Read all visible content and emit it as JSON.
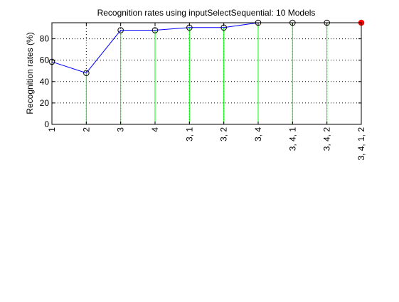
{
  "chart_data": {
    "type": "line",
    "title": "Recognition rates using inputSelectSequential: 10 Models",
    "xlabel": "",
    "ylabel": "Recognition rates (%)",
    "categories": [
      "1",
      "2",
      "3",
      "4",
      "3, 1",
      "3, 2",
      "3, 4",
      "3, 4, 1",
      "3, 4, 2",
      "3, 4, 1, 2"
    ],
    "values": [
      58.5,
      48,
      88,
      88,
      90.5,
      90.5,
      95,
      95,
      95,
      95
    ],
    "highlight_index": 9,
    "ylim": [
      0,
      95
    ],
    "yticks": [
      0,
      20,
      40,
      60,
      80
    ],
    "grid": true,
    "colors": {
      "line": "#0000ff",
      "stem": "#00ff00",
      "marker": "#000000",
      "highlight": "#ff0000",
      "grid": "#000000",
      "axis": "#000000"
    }
  }
}
